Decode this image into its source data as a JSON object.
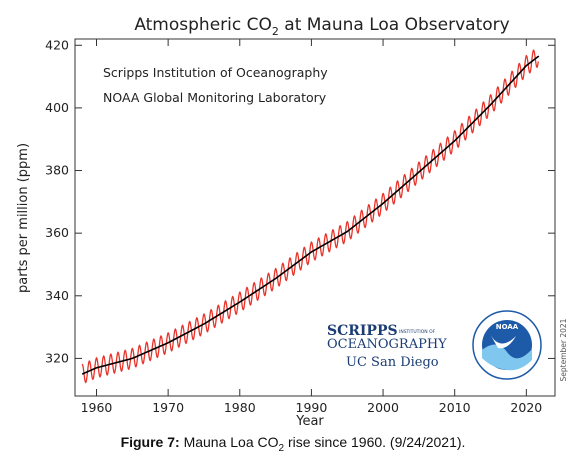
{
  "chart_data": {
    "type": "line",
    "title": {
      "pre": "Atmospheric CO",
      "sub": "2",
      "post": " at Mauna Loa Observatory"
    },
    "annotations": [
      "Scripps Institution of Oceanography",
      "NOAA Global Monitoring Laboratory"
    ],
    "xlabel": "Year",
    "ylabel": "parts per million (ppm)",
    "xlim": [
      1957,
      2024
    ],
    "ylim": [
      308,
      422
    ],
    "xticks": [
      "1960",
      "1970",
      "1980",
      "1990",
      "2000",
      "2010",
      "2020"
    ],
    "yticks": [
      "320",
      "340",
      "360",
      "380",
      "400",
      "420"
    ],
    "grid": false,
    "series": [
      {
        "role": "monthly",
        "color": "#e8332a",
        "seasonal_amplitude_ppm": 3.2,
        "x": [
          1958,
          1960,
          1965,
          1970,
          1975,
          1980,
          1985,
          1990,
          1995,
          2000,
          2005,
          2010,
          2015,
          2020,
          2021.7
        ],
        "y": [
          315,
          317,
          320,
          325,
          331,
          338,
          345.5,
          354,
          360.5,
          369.5,
          379.5,
          389.5,
          401,
          413.5,
          416.5
        ]
      },
      {
        "role": "trend",
        "color": "#000000",
        "x": [
          1958,
          1960,
          1965,
          1970,
          1975,
          1980,
          1985,
          1990,
          1995,
          2000,
          2005,
          2010,
          2015,
          2020,
          2021.7
        ],
        "y": [
          315,
          317,
          320,
          325,
          331,
          338,
          345.5,
          354,
          360.5,
          369.5,
          379.5,
          389.5,
          401,
          413.5,
          416.5
        ]
      }
    ]
  },
  "logos": {
    "scripps_line1": "SCRIPPS",
    "scripps_small": "INSTITUTION OF",
    "scripps_line2": "OCEANOGRAPHY",
    "ucsd": "UC San Diego",
    "noaa": "NOAA"
  },
  "stamp": "September 2021",
  "caption": {
    "label": "Figure 7:",
    "text_pre": " Mauna Loa CO",
    "text_sub": "2",
    "text_post": " rise since 1960. (9/24/2021)."
  }
}
